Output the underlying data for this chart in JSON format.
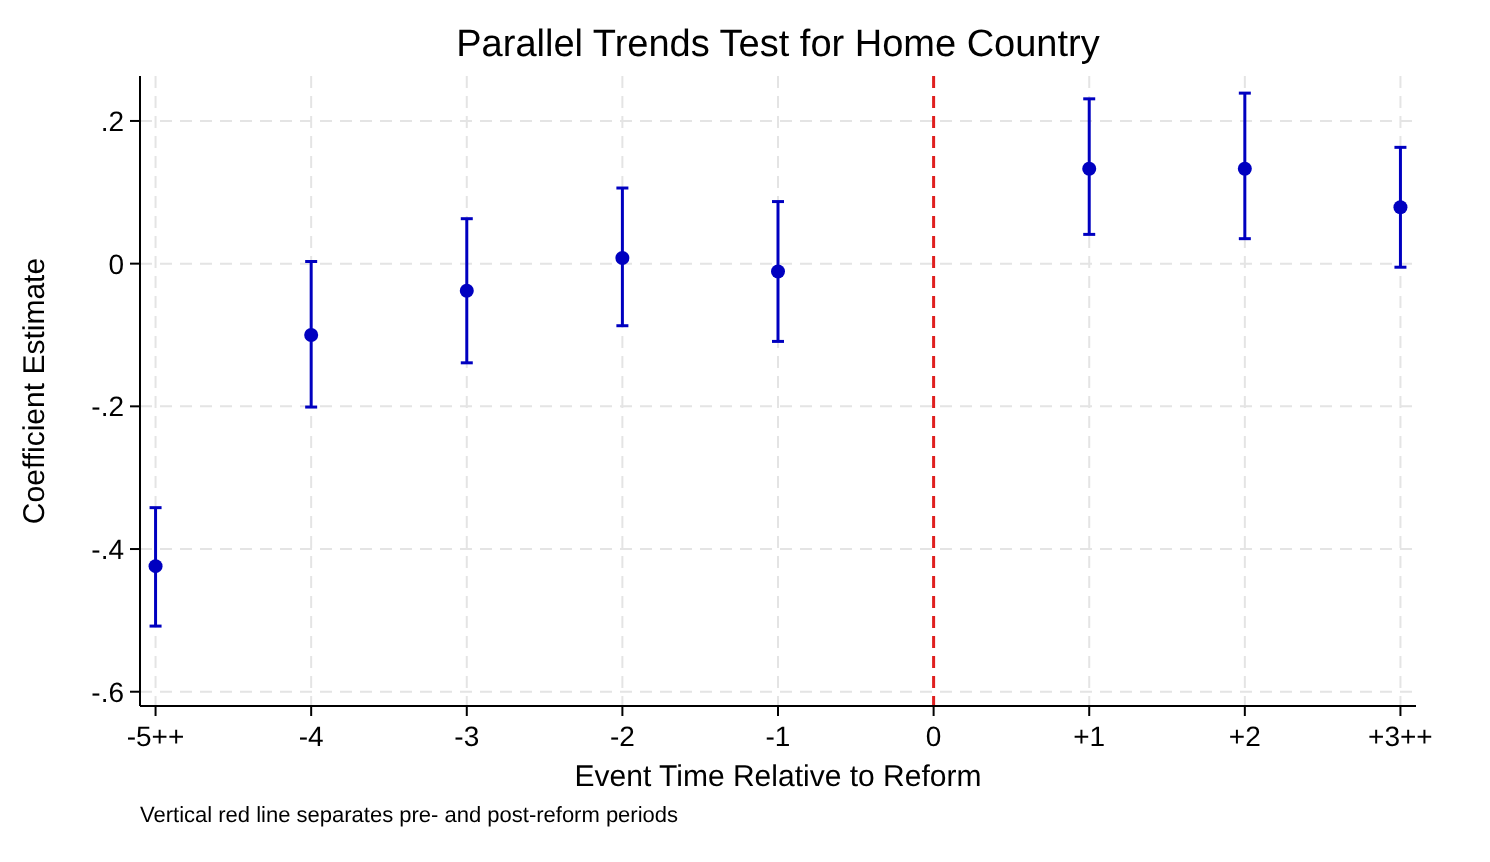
{
  "chart_data": {
    "type": "scatter",
    "title": "Parallel Trends Test for Home Country",
    "xlabel": "Event Time Relative to Reform",
    "ylabel": "Coefficient Estimate",
    "x": [
      -5,
      -4,
      -3,
      -2,
      -1,
      1,
      2,
      3
    ],
    "series": [
      {
        "color": "#0000c0",
        "values": [
          -0.424,
          -0.1,
          -0.038,
          0.008,
          -0.011,
          0.133,
          0.133,
          0.079
        ],
        "errors": [
          [
            -0.508,
            -0.342
          ],
          [
            -0.201,
            0.003
          ],
          [
            -0.139,
            0.063
          ],
          [
            -0.087,
            0.106
          ],
          [
            -0.109,
            0.087
          ],
          [
            0.041,
            0.231
          ],
          [
            0.035,
            0.239
          ],
          [
            -0.005,
            0.163
          ]
        ]
      }
    ],
    "xlim": [
      -5.1,
      3.1
    ],
    "xticks": [
      {
        "value": -5,
        "label": "-5++"
      },
      -4,
      -3,
      -2,
      -1,
      0,
      {
        "value": 1,
        "label": "+1"
      },
      {
        "value": 2,
        "label": "+2"
      },
      {
        "value": 3,
        "label": "+3++"
      }
    ],
    "ylim": [
      -0.62,
      0.263
    ],
    "yticks": [
      {
        "value": -0.6,
        "label": "-.6"
      },
      {
        "value": -0.4,
        "label": "-.4"
      },
      {
        "value": -0.2,
        "label": "-.2"
      },
      0,
      {
        "value": 0.2,
        "label": ".2"
      }
    ],
    "grid": true,
    "marker": "circle",
    "ref_lines": [
      {
        "axis": "x",
        "value": 0,
        "color": "#e02020",
        "line_style": "dashed"
      }
    ],
    "annotations": [
      "Vertical red line separates pre- and post-reform periods"
    ]
  }
}
